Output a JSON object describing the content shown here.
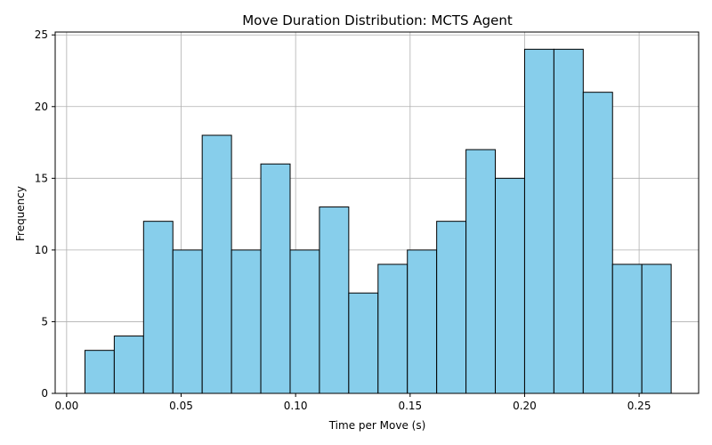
{
  "chart_data": {
    "type": "bar",
    "title": "Move Duration Distribution: MCTS Agent",
    "xlabel": "Time per Move (s)",
    "ylabel": "Frequency",
    "xlim": [
      -0.005,
      0.276
    ],
    "ylim": [
      0,
      25.2
    ],
    "x_ticks": [
      0.0,
      0.05,
      0.1,
      0.15,
      0.2,
      0.25
    ],
    "x_tick_labels": [
      "0.00",
      "0.05",
      "0.10",
      "0.15",
      "0.20",
      "0.25"
    ],
    "y_ticks": [
      0,
      5,
      10,
      15,
      20,
      25
    ],
    "y_tick_labels": [
      "0",
      "5",
      "10",
      "15",
      "20",
      "25"
    ],
    "grid": true,
    "bar_color": "#87CEEB",
    "edge_color": "#000000",
    "bins": [
      {
        "x0": 0.008,
        "x1": 0.0208,
        "value": 3
      },
      {
        "x0": 0.0208,
        "x1": 0.0336,
        "value": 4
      },
      {
        "x0": 0.0336,
        "x1": 0.0464,
        "value": 12
      },
      {
        "x0": 0.0464,
        "x1": 0.0592,
        "value": 10
      },
      {
        "x0": 0.0592,
        "x1": 0.072,
        "value": 18
      },
      {
        "x0": 0.072,
        "x1": 0.0848,
        "value": 10
      },
      {
        "x0": 0.0848,
        "x1": 0.0976,
        "value": 16
      },
      {
        "x0": 0.0976,
        "x1": 0.1104,
        "value": 10
      },
      {
        "x0": 0.1104,
        "x1": 0.1232,
        "value": 13
      },
      {
        "x0": 0.1232,
        "x1": 0.136,
        "value": 7
      },
      {
        "x0": 0.136,
        "x1": 0.1488,
        "value": 9
      },
      {
        "x0": 0.1488,
        "x1": 0.1616,
        "value": 10
      },
      {
        "x0": 0.1616,
        "x1": 0.1744,
        "value": 12
      },
      {
        "x0": 0.1744,
        "x1": 0.1872,
        "value": 17
      },
      {
        "x0": 0.1872,
        "x1": 0.2,
        "value": 15
      },
      {
        "x0": 0.2,
        "x1": 0.2128,
        "value": 24
      },
      {
        "x0": 0.2128,
        "x1": 0.2256,
        "value": 24
      },
      {
        "x0": 0.2256,
        "x1": 0.2384,
        "value": 21
      },
      {
        "x0": 0.2384,
        "x1": 0.2512,
        "value": 9
      },
      {
        "x0": 0.2512,
        "x1": 0.264,
        "value": 9
      }
    ]
  }
}
